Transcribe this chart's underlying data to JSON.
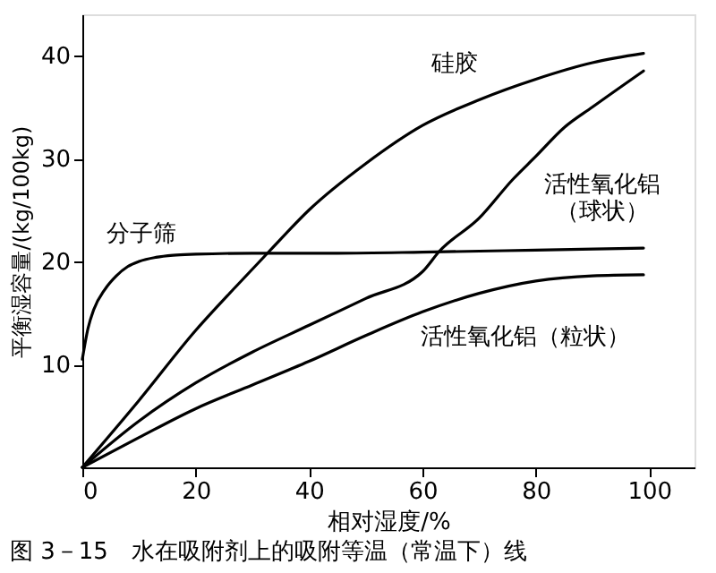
{
  "chart_data": {
    "type": "line",
    "title": "图 3－15　水在吸附剂上的吸附等温（常温下）线",
    "xlabel": "相对湿度/%",
    "ylabel": "平衡湿容量/(kg/100kg)",
    "xlim": [
      0,
      108
    ],
    "ylim": [
      0,
      44
    ],
    "xticks": [
      0,
      20,
      40,
      60,
      80,
      100
    ],
    "yticks": [
      10,
      20,
      30,
      40
    ],
    "grid": false,
    "legend": false,
    "line_style": "solid",
    "marker": "none",
    "series": [
      {
        "color": "#000000",
        "x": [
          0,
          10,
          20,
          27,
          33,
          40,
          50,
          60,
          70,
          80,
          90,
          99
        ],
        "values": [
          0,
          6.5,
          13.3,
          17.5,
          21,
          25,
          29.5,
          33.2,
          35.7,
          37.7,
          39.3,
          40.2
        ]
      },
      {
        "color": "#000000",
        "x": [
          0,
          10,
          20,
          30,
          40,
          50,
          60,
          63,
          70,
          76,
          80,
          85,
          90,
          99
        ],
        "values": [
          0,
          4.5,
          8.2,
          11.2,
          13.8,
          16.4,
          19,
          21,
          24.2,
          28,
          30.2,
          33,
          35,
          38.5
        ]
      },
      {
        "color": "#000000",
        "x": [
          0,
          10,
          20,
          30,
          40,
          50,
          60,
          70,
          80,
          90,
          99
        ],
        "values": [
          0,
          2.9,
          5.7,
          8,
          10.3,
          12.8,
          15.1,
          16.9,
          18.1,
          18.6,
          18.7
        ]
      },
      {
        "color": "#000000",
        "x": [
          0,
          1,
          2,
          4,
          6,
          8,
          10,
          13,
          16,
          20,
          30,
          45,
          60,
          80,
          99
        ],
        "values": [
          10.5,
          13.5,
          15.3,
          17.3,
          18.6,
          19.5,
          20,
          20.4,
          20.6,
          20.7,
          20.8,
          20.8,
          20.9,
          21.1,
          21.3
        ]
      }
    ],
    "annotations": [
      "硅胶",
      "分子筛",
      "活性氧化铝",
      "（球状）",
      "活性氧化铝（粒状）"
    ]
  }
}
